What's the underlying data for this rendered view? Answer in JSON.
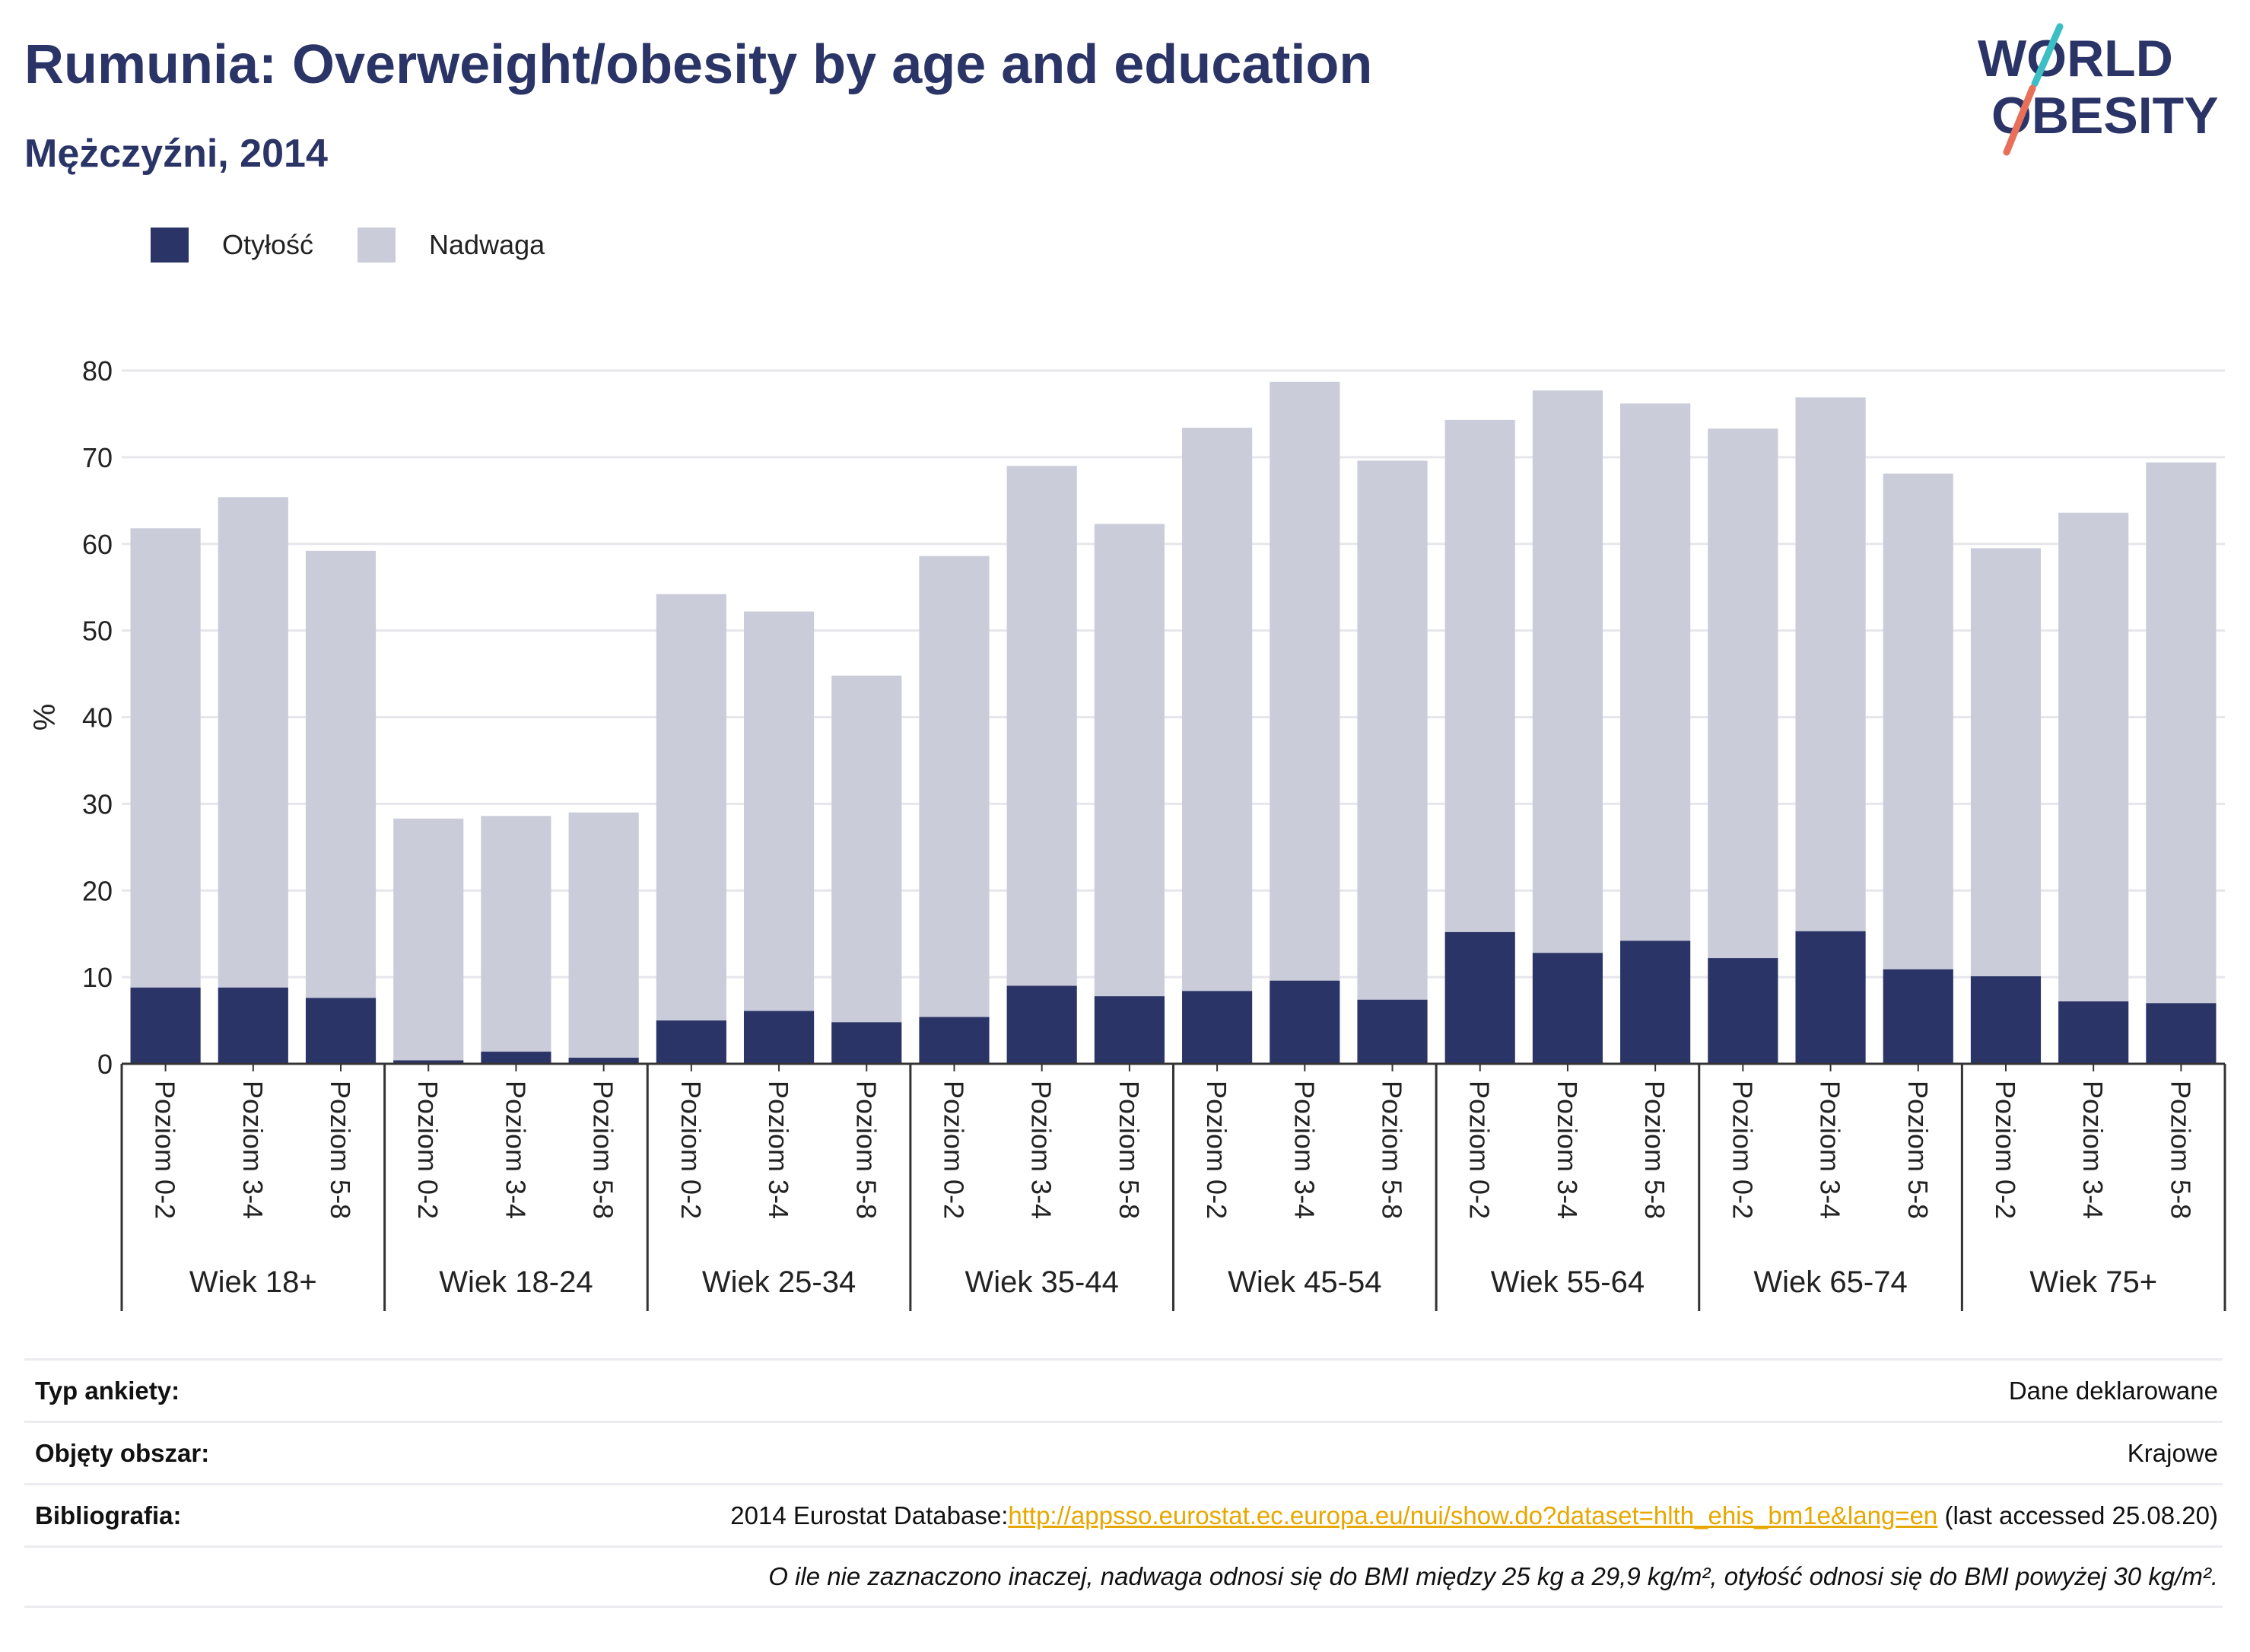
{
  "header": {
    "title": "Rumunia: Overweight/obesity by age and education",
    "subtitle": "Mężczyźni, 2014"
  },
  "logo": {
    "line1": "WORLD",
    "line2": "OBESITY"
  },
  "legend": [
    {
      "label": "Otyłość",
      "color": "#2b3467"
    },
    {
      "label": "Nadwaga",
      "color": "#cacdd9"
    }
  ],
  "chart_data": {
    "type": "bar",
    "stacked": true,
    "ylabel": "%",
    "ylim": [
      0,
      80
    ],
    "yticks": [
      0,
      10,
      20,
      30,
      40,
      50,
      60,
      70,
      80
    ],
    "grid": true,
    "legend_position": "top-left",
    "groups": [
      "Wiek 18+",
      "Wiek 18-24",
      "Wiek 25-34",
      "Wiek 35-44",
      "Wiek 45-54",
      "Wiek 55-64",
      "Wiek 65-74",
      "Wiek 75+"
    ],
    "subcategories": [
      "Poziom 0-2",
      "Poziom 3-4",
      "Poziom 5-8"
    ],
    "series": [
      {
        "name": "Otyłość",
        "color": "#2b3467",
        "values": [
          8.8,
          8.8,
          7.6,
          0.4,
          1.4,
          0.7,
          5.0,
          6.1,
          4.8,
          5.4,
          9.0,
          7.8,
          8.4,
          9.6,
          7.4,
          15.2,
          12.8,
          14.2,
          12.2,
          15.3,
          10.9,
          10.1,
          7.2,
          7.0
        ]
      },
      {
        "name": "Nadwaga",
        "color": "#cacdd9",
        "values": [
          53.0,
          56.6,
          51.6,
          27.9,
          27.2,
          28.3,
          49.2,
          46.1,
          40.0,
          53.2,
          60.0,
          54.5,
          65.0,
          69.1,
          62.2,
          59.1,
          64.9,
          62.0,
          61.1,
          61.6,
          57.2,
          49.4,
          56.4,
          62.4
        ]
      }
    ]
  },
  "info": {
    "survey_label": "Typ ankiety:",
    "survey_value": "Dane deklarowane",
    "coverage_label": "Objęty obszar:",
    "coverage_value": "Krajowe",
    "bibliography_label": "Bibliografia:",
    "bibliography_prefix": "2014 Eurostat Database:",
    "bibliography_link": "http://appsso.eurostat.ec.europa.eu/nui/show.do?dataset=hlth_ehis_bm1e&lang=en",
    "bibliography_suffix": " (last accessed 25.08.20)",
    "note": "O ile nie zaznaczono inaczej, nadwaga odnosi się do BMI między 25 kg a 29,9 kg/m², otyłość odnosi się do BMI powyżej 30 kg/m²."
  }
}
